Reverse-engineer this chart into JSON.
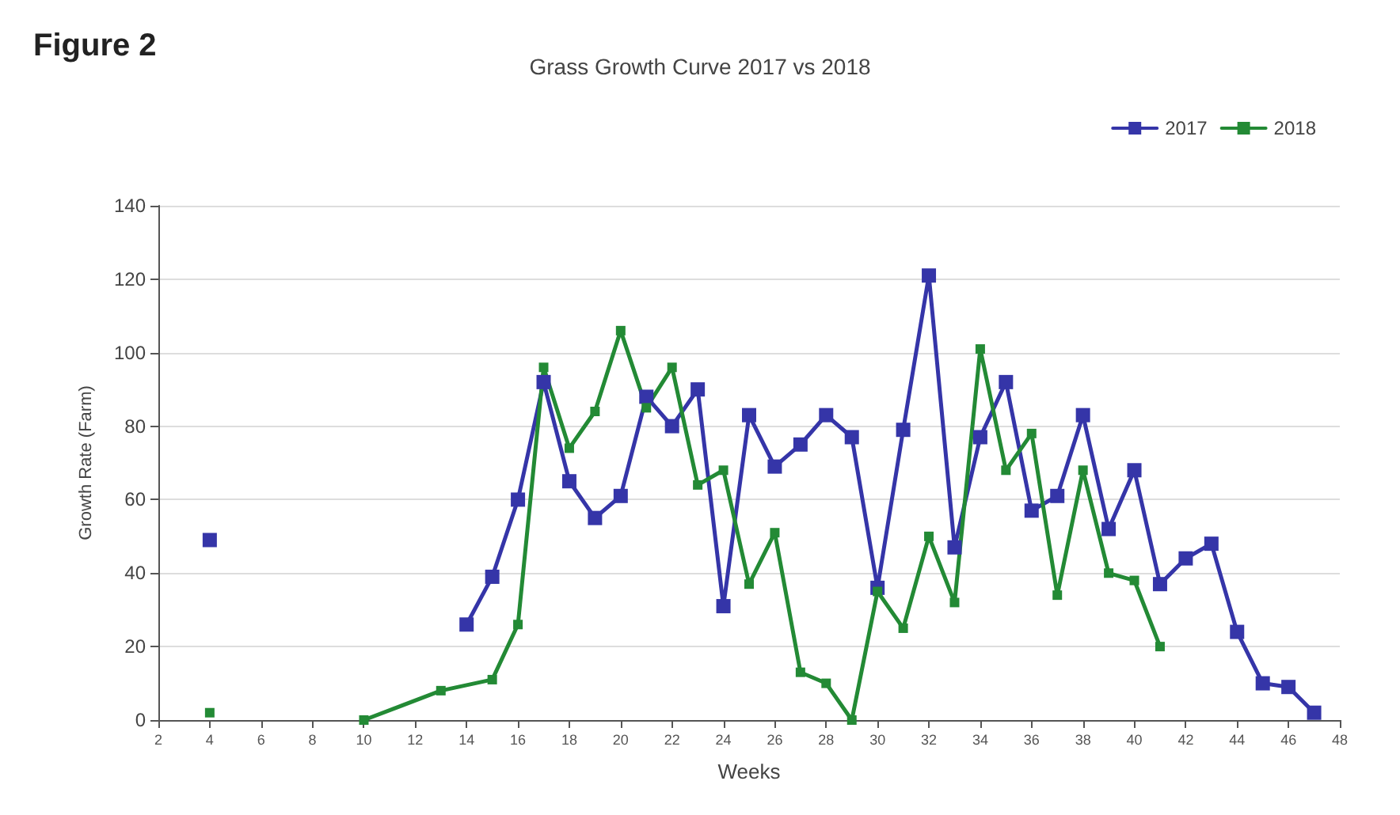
{
  "chart_data": {
    "type": "line",
    "title": "Grass Growth Curve 2017 vs 2018",
    "annotations": [
      "Figure 2"
    ],
    "xlabel": "Weeks",
    "ylabel": "Growth Rate (Farm)",
    "xlim": [
      2,
      48
    ],
    "xticks": [
      2,
      4,
      6,
      8,
      10,
      12,
      14,
      16,
      18,
      20,
      22,
      24,
      26,
      28,
      30,
      32,
      34,
      36,
      38,
      40,
      42,
      44,
      46,
      48
    ],
    "ylim": [
      0,
      140
    ],
    "yticks": [
      0,
      20,
      40,
      60,
      80,
      100,
      120,
      140
    ],
    "grid": "y",
    "legend": "top right",
    "marker": "square",
    "line_style": "solid",
    "series": [
      {
        "name": "2017",
        "color": "#3535a8",
        "x": [
          4,
          5,
          14,
          15,
          16,
          17,
          18,
          19,
          20,
          21,
          22,
          23,
          24,
          25,
          26,
          27,
          28,
          29,
          30,
          31,
          32,
          33,
          34,
          35,
          36,
          37,
          38,
          39,
          40,
          41,
          42,
          43,
          44,
          45,
          46,
          47
        ],
        "values": [
          49,
          null,
          26,
          39,
          60,
          92,
          65,
          55,
          61,
          88,
          80,
          90,
          31,
          83,
          69,
          75,
          83,
          77,
          36,
          79,
          121,
          47,
          77,
          92,
          57,
          61,
          83,
          52,
          68,
          37,
          44,
          48,
          24,
          10,
          9,
          2
        ]
      },
      {
        "name": "2018",
        "color": "#238a35",
        "x": [
          4,
          5,
          10,
          13,
          15,
          16,
          17,
          18,
          19,
          20,
          21,
          22,
          23,
          24,
          25,
          26,
          27,
          28,
          29,
          30,
          31,
          32,
          33,
          34,
          35,
          36,
          37,
          38,
          39,
          40,
          41
        ],
        "values": [
          2,
          null,
          0,
          8,
          11,
          26,
          96,
          74,
          84,
          106,
          85,
          96,
          64,
          68,
          37,
          51,
          13,
          10,
          0,
          35,
          25,
          50,
          32,
          101,
          68,
          78,
          34,
          68,
          40,
          38,
          20
        ]
      }
    ]
  }
}
